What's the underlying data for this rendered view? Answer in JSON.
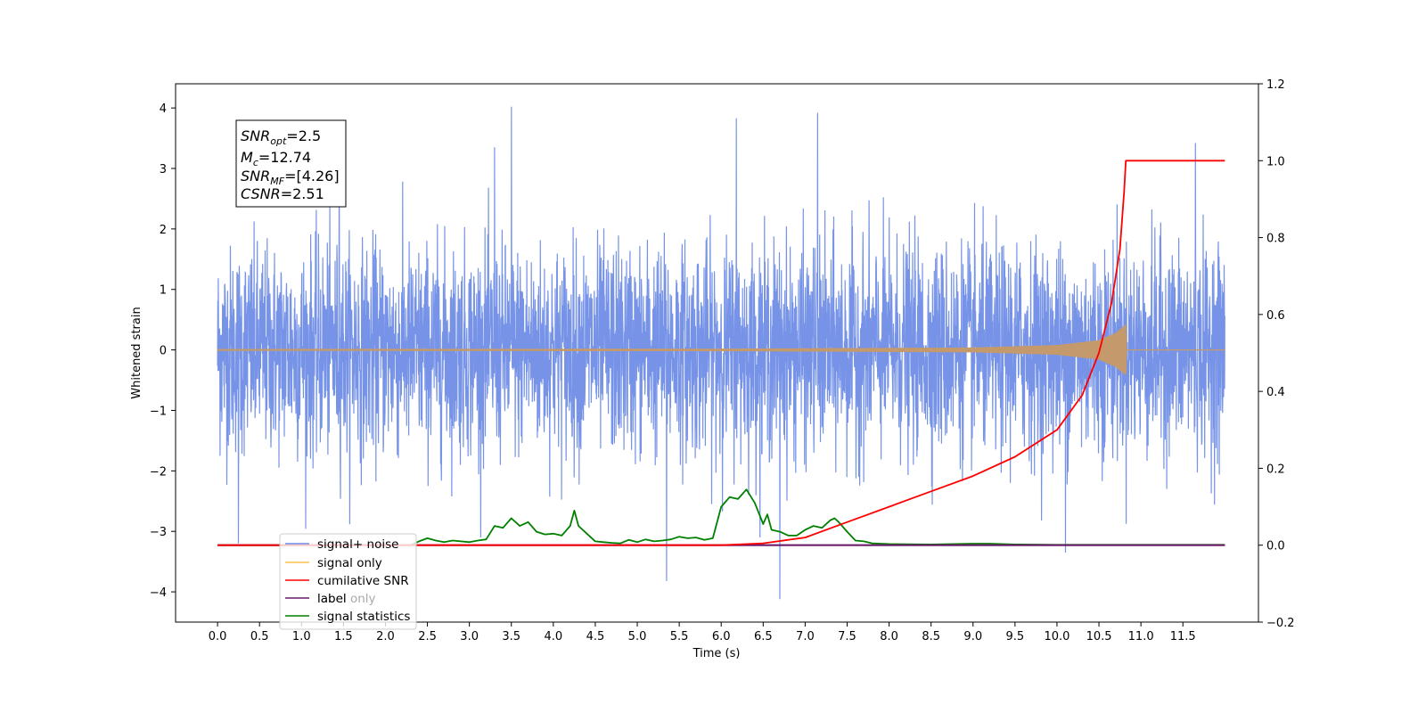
{
  "chart_data": {
    "type": "line",
    "xlabel": "Time (s)",
    "ylabel": "Whitened strain",
    "xlim": [
      -0.5,
      12.4
    ],
    "ylim": [
      -4.5,
      4.4
    ],
    "ylim_right": [
      -0.2,
      1.2
    ],
    "x_ticks": [
      0.0,
      0.5,
      1.0,
      1.5,
      2.0,
      2.5,
      3.0,
      3.5,
      4.0,
      4.5,
      5.0,
      5.5,
      6.0,
      6.5,
      7.0,
      7.5,
      8.0,
      8.5,
      9.0,
      9.5,
      10.0,
      10.5,
      11.0,
      11.5
    ],
    "x_tick_labels": [
      "0.0",
      "0.5",
      "1.0",
      "1.5",
      "2.0",
      "2.5",
      "3.0",
      "3.5",
      "4.0",
      "4.5",
      "5.0",
      "5.5",
      "6.0",
      "6.5",
      "7.0",
      "7.5",
      "8.0",
      "8.5",
      "9.0",
      "9.5",
      "10.0",
      "10.5",
      "11.0",
      "11.5"
    ],
    "y_ticks": [
      -4,
      -3,
      -2,
      -1,
      0,
      1,
      2,
      3,
      4
    ],
    "y_tick_labels": [
      "−4",
      "−3",
      "−2",
      "−1",
      "0",
      "1",
      "2",
      "3",
      "4"
    ],
    "y_ticks_right": [
      -0.2,
      0.0,
      0.2,
      0.4,
      0.6,
      0.8,
      1.0,
      1.2
    ],
    "y_tick_labels_right": [
      "−0.2",
      "0.0",
      "0.2",
      "0.4",
      "0.6",
      "0.8",
      "1.0",
      "1.2"
    ],
    "grid": false,
    "legend_position": "bottom-left",
    "annotation": {
      "snr_opt": {
        "base": "SNR",
        "sub": "opt",
        "value": "=2.5"
      },
      "mc": {
        "base": "M",
        "sub": "c",
        "value": "=12.74"
      },
      "snr_mf": {
        "base": "SNR",
        "sub": "MF",
        "value": "=[4.26]"
      },
      "csnr": {
        "base": "CSNR",
        "value": "=2.51"
      }
    },
    "series": [
      {
        "name": "signal+ noise",
        "color": "#6f8de6",
        "axis": "left",
        "x_range": [
          0.0,
          12.0
        ],
        "std": 0.85,
        "peaks": [
          [
            3.5,
            4.02
          ],
          [
            6.18,
            3.83
          ],
          [
            7.15,
            3.92
          ],
          [
            11.65,
            3.42
          ],
          [
            1.45,
            3.3
          ],
          [
            3.3,
            3.35
          ],
          [
            5.35,
            -3.82
          ],
          [
            6.7,
            -4.12
          ],
          [
            10.1,
            -3.35
          ],
          [
            0.25,
            -3.2
          ]
        ]
      },
      {
        "name": "signal only",
        "color": "#c49a6c",
        "axis": "left",
        "x_range": [
          0.0,
          12.0
        ],
        "merger_time": 10.82,
        "envelope": [
          [
            0.0,
            0.015
          ],
          [
            6.0,
            0.02
          ],
          [
            9.0,
            0.04
          ],
          [
            10.0,
            0.08
          ],
          [
            10.5,
            0.16
          ],
          [
            10.7,
            0.28
          ],
          [
            10.82,
            0.42
          ],
          [
            10.83,
            0.0
          ],
          [
            12.0,
            0.0
          ]
        ]
      },
      {
        "name": "cumilative SNR",
        "color": "#ff0000",
        "axis": "right",
        "x": [
          0.0,
          6.0,
          6.5,
          7.0,
          7.5,
          8.0,
          8.5,
          9.0,
          9.5,
          10.0,
          10.3,
          10.5,
          10.65,
          10.75,
          10.8,
          10.82,
          11.0,
          11.5,
          12.0
        ],
        "y": [
          0.0,
          0.0,
          0.005,
          0.02,
          0.06,
          0.1,
          0.14,
          0.18,
          0.23,
          0.3,
          0.39,
          0.5,
          0.63,
          0.77,
          0.92,
          1.0,
          1.0,
          1.0,
          1.0
        ]
      },
      {
        "name": "label",
        "color": "#6a1b6a",
        "axis": "right",
        "x": [
          0.0,
          12.0
        ],
        "y": [
          0.0,
          0.0
        ]
      },
      {
        "name": "label only",
        "color": "#6a1b6a",
        "axis": "right",
        "x": [
          0.0,
          12.0
        ],
        "y": [
          0.0,
          0.0
        ]
      },
      {
        "name": "signal statistics",
        "color": "#008000",
        "axis": "right",
        "x": [
          0.0,
          2.3,
          2.4,
          2.5,
          2.6,
          2.7,
          2.8,
          3.0,
          3.1,
          3.2,
          3.3,
          3.4,
          3.5,
          3.6,
          3.7,
          3.8,
          3.9,
          4.0,
          4.1,
          4.2,
          4.25,
          4.3,
          4.4,
          4.5,
          4.6,
          4.7,
          4.8,
          4.9,
          5.0,
          5.1,
          5.2,
          5.3,
          5.4,
          5.5,
          5.6,
          5.7,
          5.8,
          5.9,
          6.0,
          6.1,
          6.2,
          6.3,
          6.4,
          6.5,
          6.55,
          6.6,
          6.7,
          6.8,
          6.9,
          7.0,
          7.1,
          7.2,
          7.3,
          7.35,
          7.4,
          7.5,
          7.6,
          7.7,
          7.8,
          8.0,
          8.5,
          9.0,
          9.2,
          9.5,
          10.0,
          11.0,
          12.0
        ],
        "y": [
          0.0,
          0.0,
          0.01,
          0.018,
          0.012,
          0.008,
          0.012,
          0.008,
          0.012,
          0.015,
          0.05,
          0.045,
          0.07,
          0.05,
          0.06,
          0.035,
          0.028,
          0.03,
          0.025,
          0.05,
          0.09,
          0.05,
          0.03,
          0.01,
          0.008,
          0.006,
          0.005,
          0.014,
          0.008,
          0.015,
          0.01,
          0.012,
          0.015,
          0.022,
          0.018,
          0.02,
          0.014,
          0.018,
          0.1,
          0.125,
          0.12,
          0.145,
          0.11,
          0.055,
          0.08,
          0.04,
          0.035,
          0.025,
          0.025,
          0.04,
          0.05,
          0.045,
          0.065,
          0.07,
          0.06,
          0.035,
          0.012,
          0.01,
          0.005,
          0.003,
          0.002,
          0.004,
          0.004,
          0.002,
          0.001,
          0.001,
          0.001
        ]
      }
    ]
  }
}
